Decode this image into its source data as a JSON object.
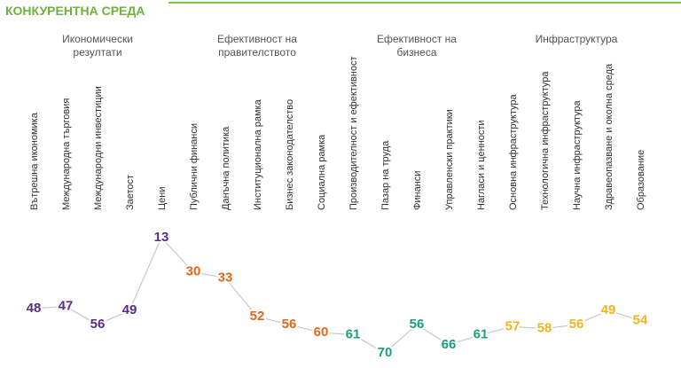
{
  "chart_data": {
    "type": "line",
    "title": "КОНКУРЕНТНА СРЕДА",
    "y_reversed": true,
    "groups": [
      {
        "name": "Икономически резултати",
        "color": "#5b2a8e",
        "categories": [
          "Вътрешна икономика",
          "Международна търговия",
          "Международни инвестиции",
          "Заетост",
          "Цени"
        ],
        "values": [
          48,
          47,
          56,
          49,
          13
        ]
      },
      {
        "name": "Ефективност на правителството",
        "color": "#e8651a",
        "categories": [
          "Публични финанси",
          "Данъчна политика",
          "Институционална рамка",
          "Бизнес законодателство",
          "Социална рамка"
        ],
        "values": [
          30,
          33,
          52,
          56,
          60
        ]
      },
      {
        "name": "Ефективност на бизнеса",
        "color": "#17a27a",
        "categories": [
          "Производителност и ефективност",
          "Пазар на труда",
          "Финанси",
          "Управленски практики",
          "Нагласи и ценности"
        ],
        "values": [
          61,
          70,
          56,
          66,
          61
        ]
      },
      {
        "name": "Инфраструктура",
        "color": "#f0b51c",
        "categories": [
          "Основна инфраструктура",
          "Технологична инфраструктура",
          "Научна инфраструктура",
          "Здравеопазване и околна среда",
          "Образование"
        ],
        "values": [
          57,
          58,
          56,
          49,
          54
        ]
      }
    ]
  }
}
